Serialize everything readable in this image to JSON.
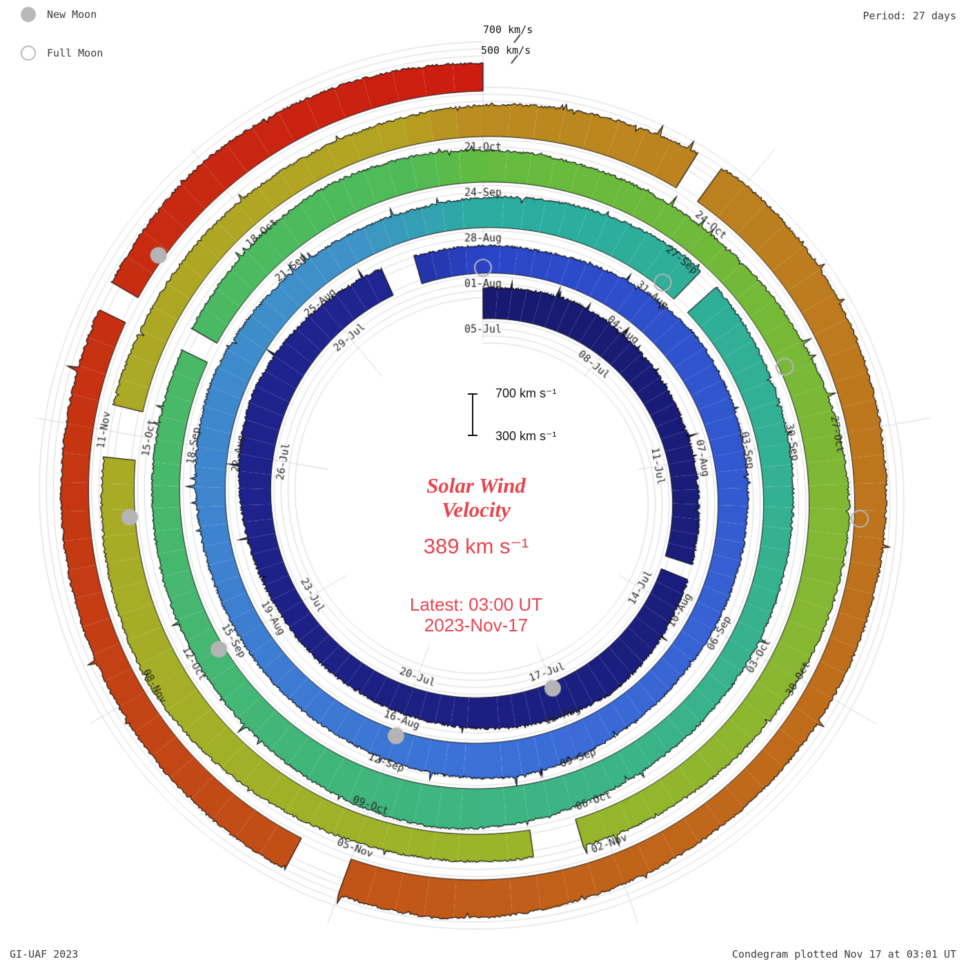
{
  "legend": {
    "new_moon": "New Moon",
    "full_moon": "Full Moon"
  },
  "period_label": "Period: 27 days",
  "credit": "GI-UAF 2023",
  "footer": "Condegram plotted Nov 17 at 03:01 UT",
  "grid_labels": {
    "outer": "700 km/s",
    "inner": "500 km/s"
  },
  "scale_bar": {
    "top": "700 km s⁻¹",
    "bottom": "300 km s⁻¹"
  },
  "center": {
    "title_line1": "Solar Wind",
    "title_line2": "Velocity",
    "current_value": "389 km s⁻¹",
    "latest_line1": "Latest: 03:00 UT",
    "latest_line2": "2023-Nov-17"
  },
  "chart_data": {
    "type": "area",
    "title": "Solar Wind Velocity condegram (spiral plot)",
    "start_date": "2023-07-05",
    "end_date": "2023-11-17",
    "period_days": 27,
    "units": "km/s",
    "current_velocity": 389,
    "radial_axis": {
      "min": 0,
      "max": 700,
      "gridlines": [
        300,
        400,
        500,
        600,
        700
      ]
    },
    "date_labels": [
      [
        "05-Jul",
        0
      ],
      [
        "08-Jul",
        3
      ],
      [
        "11-Jul",
        6
      ],
      [
        "14-Jul",
        9
      ],
      [
        "17-Jul",
        12
      ],
      [
        "20-Jul",
        15
      ],
      [
        "23-Jul",
        18
      ],
      [
        "26-Jul",
        21
      ],
      [
        "29-Jul",
        24
      ],
      [
        "01-Aug",
        27
      ],
      [
        "04-Aug",
        30
      ],
      [
        "07-Aug",
        33
      ],
      [
        "10-Aug",
        36
      ],
      [
        "13-Aug",
        39
      ],
      [
        "16-Aug",
        42
      ],
      [
        "19-Aug",
        45
      ],
      [
        "22-Aug",
        48
      ],
      [
        "25-Aug",
        51
      ],
      [
        "28-Aug",
        54
      ],
      [
        "31-Aug",
        57
      ],
      [
        "03-Sep",
        60
      ],
      [
        "06-Sep",
        63
      ],
      [
        "09-Sep",
        66
      ],
      [
        "12-Sep",
        69
      ],
      [
        "15-Sep",
        72
      ],
      [
        "18-Sep",
        75
      ],
      [
        "21-Sep",
        78
      ],
      [
        "24-Sep",
        81
      ],
      [
        "27-Sep",
        84
      ],
      [
        "30-Sep",
        87
      ],
      [
        "03-Oct",
        90
      ],
      [
        "06-Oct",
        93
      ],
      [
        "09-Oct",
        96
      ],
      [
        "12-Oct",
        99
      ],
      [
        "15-Oct",
        102
      ],
      [
        "18-Oct",
        105
      ],
      [
        "21-Oct",
        108
      ],
      [
        "24-Oct",
        111
      ],
      [
        "27-Oct",
        114
      ],
      [
        "30-Oct",
        117
      ],
      [
        "02-Nov",
        120
      ],
      [
        "05-Nov",
        123
      ],
      [
        "08-Nov",
        126
      ],
      [
        "11-Nov",
        129
      ]
    ],
    "daily_velocity": [
      430,
      455,
      480,
      445,
      410,
      385,
      370,
      375,
      395,
      430,
      490,
      540,
      505,
      460,
      420,
      395,
      380,
      370,
      365,
      385,
      425,
      480,
      530,
      495,
      450,
      420,
      400,
      390,
      380,
      425,
      475,
      520,
      490,
      450,
      420,
      400,
      390,
      385,
      420,
      470,
      515,
      480,
      440,
      410,
      395,
      385,
      380,
      405,
      445,
      490,
      460,
      430,
      410,
      395,
      425,
      465,
      515,
      565,
      530,
      480,
      445,
      415,
      400,
      390,
      385,
      405,
      455,
      525,
      585,
      550,
      500,
      460,
      430,
      410,
      395,
      385,
      395,
      425,
      475,
      520,
      490,
      455,
      425,
      405,
      390,
      420,
      470,
      530,
      575,
      540,
      490,
      450,
      420,
      400,
      390,
      385,
      395,
      430,
      485,
      545,
      510,
      470,
      440,
      415,
      400,
      390,
      385,
      405,
      445,
      495,
      555,
      605,
      570,
      520,
      475,
      440,
      415,
      400,
      390,
      405,
      445,
      505,
      565,
      535,
      485,
      450,
      425,
      405,
      395,
      390,
      410,
      455,
      505,
      470,
      440,
      389
    ],
    "gaps": [
      [
        8.1,
        8.45
      ],
      [
        25.3,
        25.7
      ],
      [
        57.3,
        57.6
      ],
      [
        76.2,
        76.5
      ],
      [
        93.4,
        93.8
      ],
      [
        101.8,
        102.2
      ],
      [
        110.3,
        110.7
      ],
      [
        123.1,
        123.45
      ],
      [
        130.2,
        130.6
      ]
    ],
    "new_moon_days": [
      12,
      42,
      72,
      101,
      131
    ],
    "full_moon_days": [
      27,
      57,
      86,
      115
    ],
    "moon_color": "#b4b4b4",
    "grid_color": "#cbcbcb",
    "outline_color": "#000000",
    "accent_red": "#e9444d",
    "color_stops": [
      [
        0,
        "#181a70"
      ],
      [
        25,
        "#1f2490"
      ],
      [
        27,
        "#2a46c8"
      ],
      [
        40,
        "#3c6fd8"
      ],
      [
        52,
        "#3f93c8"
      ],
      [
        54,
        "#2aada0"
      ],
      [
        66,
        "#3cb487"
      ],
      [
        80,
        "#4fbb58"
      ],
      [
        81,
        "#63bb3f"
      ],
      [
        94,
        "#9ab52a"
      ],
      [
        107,
        "#b4a322"
      ],
      [
        108,
        "#bb8a20"
      ],
      [
        120,
        "#c0641a"
      ],
      [
        128,
        "#c43812"
      ],
      [
        135,
        "#cc1c10"
      ]
    ]
  }
}
